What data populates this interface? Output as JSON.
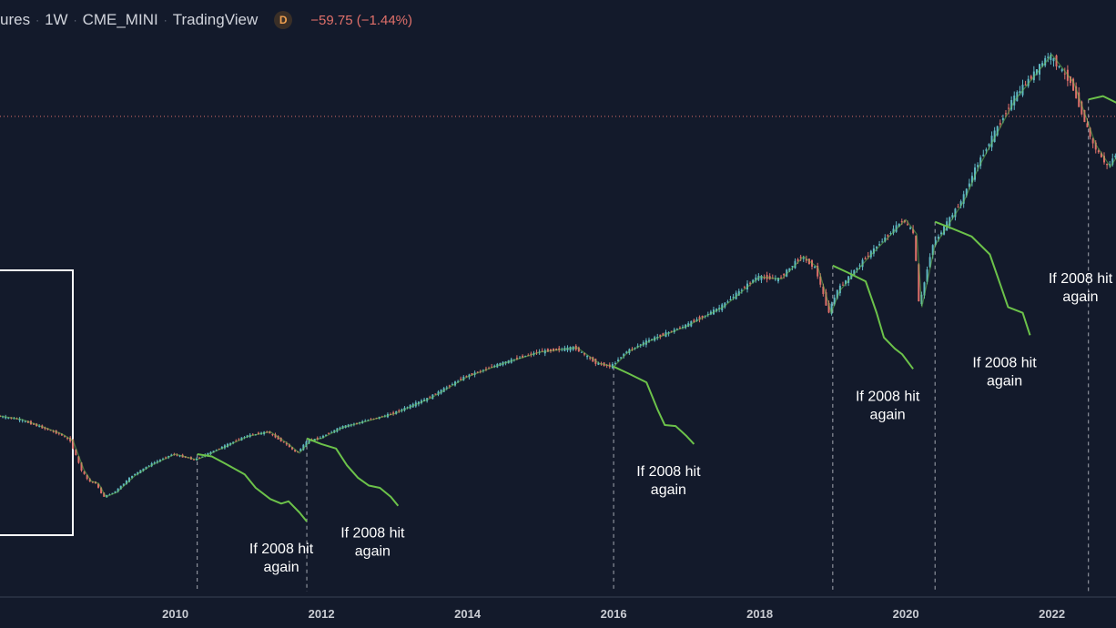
{
  "header": {
    "symbol_fragment": "ures",
    "interval": "1W",
    "exchange": "CME_MINI",
    "source": "TradingView",
    "badge": "D",
    "change": "−59.75 (−1.44%)",
    "change_color": "#e0706a"
  },
  "colors": {
    "background": "#131a2b",
    "up_candle": "#5fb8c4",
    "down_candle": "#e0706a",
    "overlay_line": "#6cc24a",
    "annotation_text": "#ffffff",
    "highlight_box": "#ffffff",
    "price_line": "#e0706a"
  },
  "chart_data": {
    "type": "line",
    "title": "",
    "xlabel": "",
    "ylabel": "",
    "x_ticks": [
      "2010",
      "2012",
      "2014",
      "2016",
      "2018",
      "2020",
      "2022"
    ],
    "xlim": [
      2007.6,
      2023.8
    ],
    "y_axis_shown": false,
    "grid": false,
    "price_line_value": 4150,
    "annotations": [
      {
        "text": [
          "If 2008 hit",
          "again"
        ],
        "year": 2010.3
      },
      {
        "text": [
          "If 2008 hit",
          "again"
        ],
        "year": 2011.8
      },
      {
        "text": [
          "If 2008 hit",
          "again"
        ],
        "year": 2016.0
      },
      {
        "text": [
          "If 2008 hit",
          "again"
        ],
        "year": 2019.0
      },
      {
        "text": [
          "If 2008 hit",
          "again"
        ],
        "year": 2020.4
      },
      {
        "text": [
          "If 2008 hit",
          "again"
        ],
        "year": 2022.5
      }
    ],
    "highlight_range": [
      2007.6,
      2009.5
    ],
    "series": [
      {
        "kind": "price",
        "x": [
          2007.6,
          2007.9,
          2008.2,
          2008.45,
          2008.6,
          2008.75,
          2008.85,
          2008.95,
          2009.05,
          2009.2,
          2009.45,
          2009.7,
          2010.0,
          2010.3,
          2010.6,
          2011.0,
          2011.3,
          2011.55,
          2011.7,
          2011.85,
          2012.0,
          2012.3,
          2012.6,
          2013.0,
          2013.5,
          2014.0,
          2014.5,
          2015.0,
          2015.5,
          2015.8,
          2016.0,
          2016.2,
          2016.5,
          2017.0,
          2017.5,
          2018.0,
          2018.3,
          2018.6,
          2018.8,
          2018.98,
          2019.1,
          2019.5,
          2020.0,
          2020.15,
          2020.22,
          2020.4,
          2020.8,
          2021.0,
          2021.5,
          2022.0,
          2022.3,
          2022.6,
          2022.8,
          2023.0,
          2023.4,
          2023.8
        ],
        "y": [
          1480,
          1450,
          1380,
          1320,
          1260,
          1000,
          900,
          880,
          760,
          800,
          950,
          1050,
          1140,
          1090,
          1180,
          1300,
          1340,
          1230,
          1150,
          1260,
          1280,
          1380,
          1430,
          1500,
          1640,
          1830,
          1950,
          2050,
          2090,
          1950,
          1920,
          2050,
          2150,
          2280,
          2450,
          2720,
          2700,
          2900,
          2800,
          2400,
          2600,
          2900,
          3230,
          3100,
          2450,
          3000,
          3400,
          3700,
          4300,
          4700,
          4450,
          3900,
          3700,
          3900,
          4150,
          4300
        ]
      },
      {
        "kind": "drawdown",
        "start_year": 2010.3,
        "x": [
          2010.3,
          2010.5,
          2010.7,
          2010.95,
          2011.1,
          2011.3,
          2011.45,
          2011.55,
          2011.7,
          2011.8
        ],
        "y": [
          1140,
          1120,
          1050,
          960,
          840,
          740,
          700,
          720,
          620,
          540
        ]
      },
      {
        "kind": "drawdown",
        "start_year": 2011.8,
        "x": [
          2011.8,
          2012.0,
          2012.2,
          2012.35,
          2012.5,
          2012.65,
          2012.8,
          2012.95,
          2013.05
        ],
        "y": [
          1280,
          1230,
          1190,
          1040,
          930,
          860,
          840,
          760,
          680
        ]
      },
      {
        "kind": "drawdown",
        "start_year": 2016.0,
        "x": [
          2016.0,
          2016.2,
          2016.45,
          2016.6,
          2016.7,
          2016.85,
          2017.0,
          2017.1
        ],
        "y": [
          1920,
          1860,
          1780,
          1540,
          1400,
          1390,
          1300,
          1230
        ]
      },
      {
        "kind": "drawdown",
        "start_year": 2019.0,
        "x": [
          2019.0,
          2019.2,
          2019.45,
          2019.6,
          2019.7,
          2019.85,
          2019.95,
          2020.1
        ],
        "y": [
          2820,
          2760,
          2680,
          2400,
          2180,
          2080,
          2030,
          1900
        ]
      },
      {
        "kind": "drawdown",
        "start_year": 2020.4,
        "x": [
          2020.4,
          2020.6,
          2020.9,
          2021.15,
          2021.3,
          2021.4,
          2021.6,
          2021.7
        ],
        "y": [
          3210,
          3160,
          3080,
          2920,
          2640,
          2450,
          2400,
          2200
        ]
      },
      {
        "kind": "drawdown",
        "start_year": 2022.5,
        "x": [
          2022.5,
          2022.7,
          2022.95,
          2023.15,
          2023.3,
          2023.45,
          2023.6,
          2023.7,
          2023.8
        ],
        "y": [
          4300,
          4330,
          4250,
          4100,
          3790,
          3360,
          3180,
          3050,
          2950
        ]
      }
    ]
  }
}
